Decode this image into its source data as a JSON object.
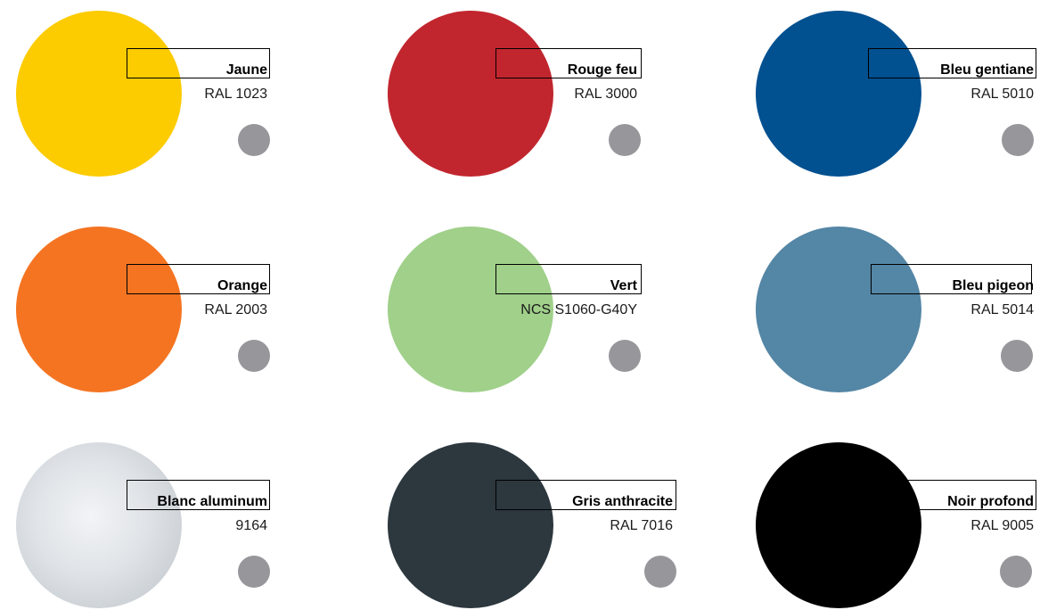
{
  "swatches": [
    {
      "name": "Jaune",
      "code": "RAL 1023",
      "color": "#fccb00"
    },
    {
      "name": "Rouge feu",
      "code": "RAL 3000",
      "color": "#c1262e"
    },
    {
      "name": "Bleu gentiane",
      "code": "RAL 5010",
      "color": "#015090"
    },
    {
      "name": "Orange",
      "code": "RAL 2003",
      "color": "#f47422"
    },
    {
      "name": "Vert",
      "code": "NCS S1060-G40Y",
      "color": "#a0d08a"
    },
    {
      "name": "Bleu pigeon",
      "code": "RAL 5014",
      "color": "#5486a5"
    },
    {
      "name": "Blanc aluminum",
      "code": "9164",
      "color": "#d9dde1"
    },
    {
      "name": "Gris anthracite",
      "code": "RAL 7016",
      "color": "#2c373e"
    },
    {
      "name": "Noir profond",
      "code": "RAL 9005",
      "color": "#000000"
    }
  ],
  "dot_color": "#96969b"
}
